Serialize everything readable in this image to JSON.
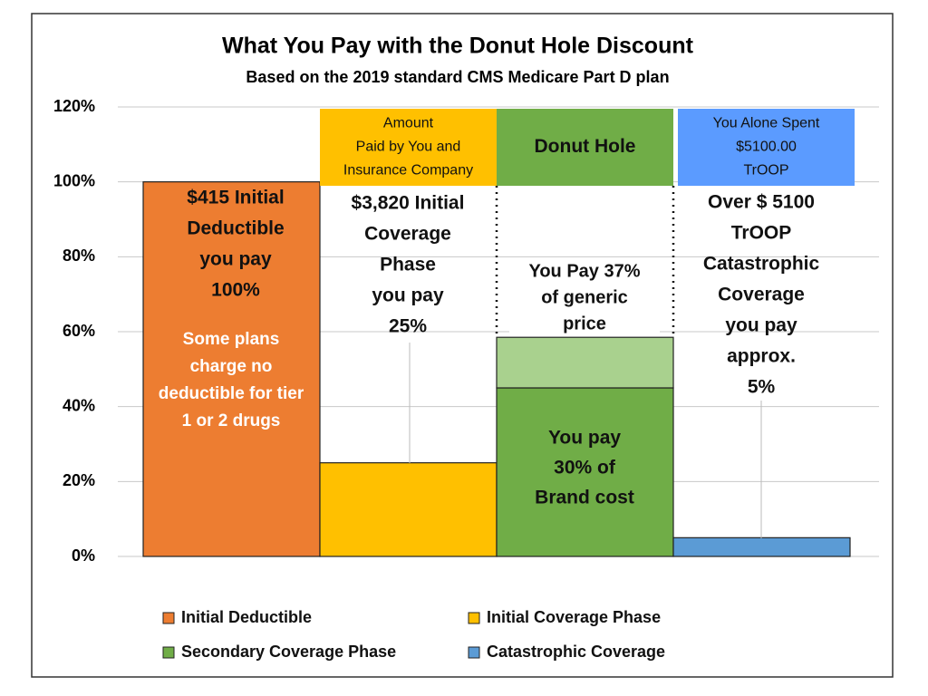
{
  "chart_data": {
    "type": "bar",
    "title": "What You Pay with the Donut Hole Discount",
    "subtitle": "Based on the 2019 standard CMS Medicare Part D plan",
    "categories": [
      null,
      null,
      null,
      null
    ],
    "series": [
      {
        "name": "Initial Deductible",
        "color": "#ed7d31",
        "values": [
          100,
          null,
          null,
          null
        ]
      },
      {
        "name": "Initial Coverage Phase",
        "color": "#ffc000",
        "values": [
          null,
          25,
          null,
          null
        ]
      },
      {
        "name": "Secondary Coverage Phase",
        "color": "#70ad47",
        "values": [
          null,
          null,
          45,
          null
        ]
      },
      {
        "color": "#a9d18e",
        "values": [
          null,
          null,
          13.5,
          null
        ]
      },
      {
        "name": "Catastrophic Coverage",
        "color": "#5b9bd5",
        "values": [
          null,
          null,
          null,
          5
        ]
      }
    ],
    "stacked": true,
    "ylim": [
      0,
      120
    ],
    "yticks": [
      {
        "value": 0,
        "label": "0%"
      },
      {
        "value": 20,
        "label": "20%"
      },
      {
        "value": 40,
        "label": "40%"
      },
      {
        "value": 60,
        "label": "60%"
      },
      {
        "value": 80,
        "label": "80%"
      },
      {
        "value": 100,
        "label": "100%"
      },
      {
        "value": 120,
        "label": "120%"
      }
    ],
    "grid": true,
    "legend": "bottom",
    "headers": [
      {
        "lines": [
          "Amount",
          "Paid by You and",
          "Insurance Company"
        ],
        "color": "#ffc000"
      },
      {
        "lines": [
          "Donut Hole"
        ],
        "color": "#70ad47"
      },
      {
        "lines": [
          "You Alone Spent",
          "$5100.00",
          "TrOOP"
        ],
        "color": "#5b9bff"
      }
    ],
    "annotations": [
      {
        "lines": [
          "$415 Initial",
          "Deductible",
          "you pay",
          "100%"
        ]
      },
      {
        "lines": [
          "Some plans",
          "charge no",
          "deductible for tier",
          "1 or 2 drugs"
        ]
      },
      {
        "lines": [
          "$3,820 Initial",
          "Coverage",
          "Phase",
          "you pay",
          "25%"
        ]
      },
      {
        "lines": [
          "You Pay 37%",
          "of generic",
          "price"
        ]
      },
      {
        "lines": [
          "You pay",
          "30% of",
          "Brand cost"
        ]
      },
      {
        "lines": [
          "Over $ 5100",
          "TrOOP",
          "Catastrophic",
          "Coverage",
          "you pay",
          "approx.",
          "5%"
        ]
      }
    ]
  }
}
